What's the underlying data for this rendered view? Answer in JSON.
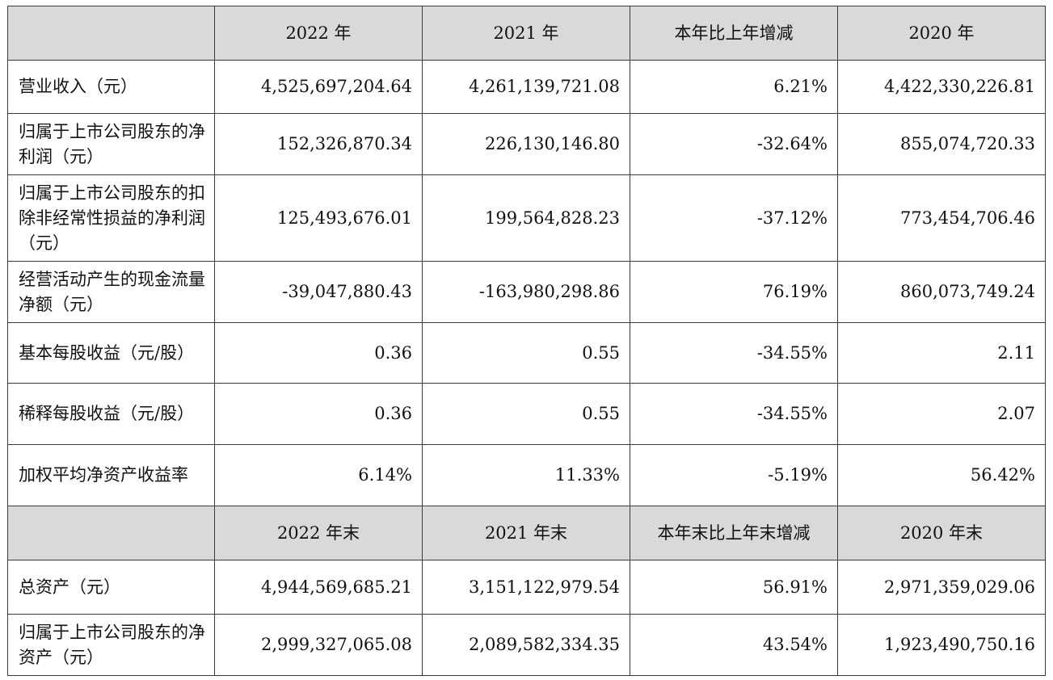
{
  "header": {
    "corner": "",
    "col1": "2022 年",
    "col2": "2021 年",
    "col3": "本年比上年增减",
    "col4": "2020 年"
  },
  "rows": [
    {
      "label": "营业收入（元）",
      "v2022": "4,525,697,204.64",
      "v2021": "4,261,139,721.08",
      "change": "6.21%",
      "v2020": "4,422,330,226.81"
    },
    {
      "label": "归属于上市公司股东的净利润（元）",
      "v2022": "152,326,870.34",
      "v2021": "226,130,146.80",
      "change": "-32.64%",
      "v2020": "855,074,720.33"
    },
    {
      "label": "归属于上市公司股东的扣除非经常性损益的净利润（元）",
      "v2022": "125,493,676.01",
      "v2021": "199,564,828.23",
      "change": "-37.12%",
      "v2020": "773,454,706.46"
    },
    {
      "label": "经营活动产生的现金流量净额（元）",
      "v2022": "-39,047,880.43",
      "v2021": "-163,980,298.86",
      "change": "76.19%",
      "v2020": "860,073,749.24"
    },
    {
      "label": "基本每股收益（元/股）",
      "v2022": "0.36",
      "v2021": "0.55",
      "change": "-34.55%",
      "v2020": "2.11"
    },
    {
      "label": "稀释每股收益（元/股）",
      "v2022": "0.36",
      "v2021": "0.55",
      "change": "-34.55%",
      "v2020": "2.07"
    },
    {
      "label": "加权平均净资产收益率",
      "v2022": "6.14%",
      "v2021": "11.33%",
      "change": "-5.19%",
      "v2020": "56.42%"
    }
  ],
  "subheader": {
    "corner": "",
    "col1": "2022 年末",
    "col2": "2021 年末",
    "col3": "本年末比上年末增减",
    "col4": "2020 年末"
  },
  "rows2": [
    {
      "label": "总资产（元）",
      "v2022": "4,944,569,685.21",
      "v2021": "3,151,122,979.54",
      "change": "56.91%",
      "v2020": "2,971,359,029.06"
    },
    {
      "label": "归属于上市公司股东的净资产（元）",
      "v2022": "2,999,327,065.08",
      "v2021": "2,089,582,334.35",
      "change": "43.54%",
      "v2020": "1,923,490,750.16"
    }
  ]
}
